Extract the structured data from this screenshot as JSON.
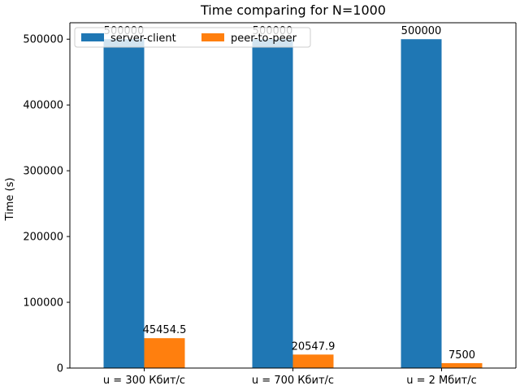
{
  "chart_data": {
    "type": "bar",
    "title": "Time comparing for N=1000",
    "xlabel": "",
    "ylabel": "Time (s)",
    "categories": [
      "u = 300 Кбит/с",
      "u = 700 Кбит/с",
      "u = 2 Мбит/с"
    ],
    "series": [
      {
        "name": "server-client",
        "values": [
          500000,
          500000,
          500000
        ],
        "labels": [
          "500000",
          "500000",
          "500000"
        ],
        "color": "#1f77b4"
      },
      {
        "name": "peer-to-peer",
        "values": [
          45454.5,
          20547.9,
          7500
        ],
        "labels": [
          "45454.5",
          "20547.9",
          "7500"
        ],
        "color": "#ff7f0e"
      }
    ],
    "ylim": [
      0,
      525000
    ],
    "yticks": [
      0,
      100000,
      200000,
      300000,
      400000,
      500000
    ],
    "ytick_labels": [
      "0",
      "100000",
      "200000",
      "300000",
      "400000",
      "500000"
    ],
    "grid": false,
    "legend_position": "top-left",
    "legend_columns": 2
  }
}
